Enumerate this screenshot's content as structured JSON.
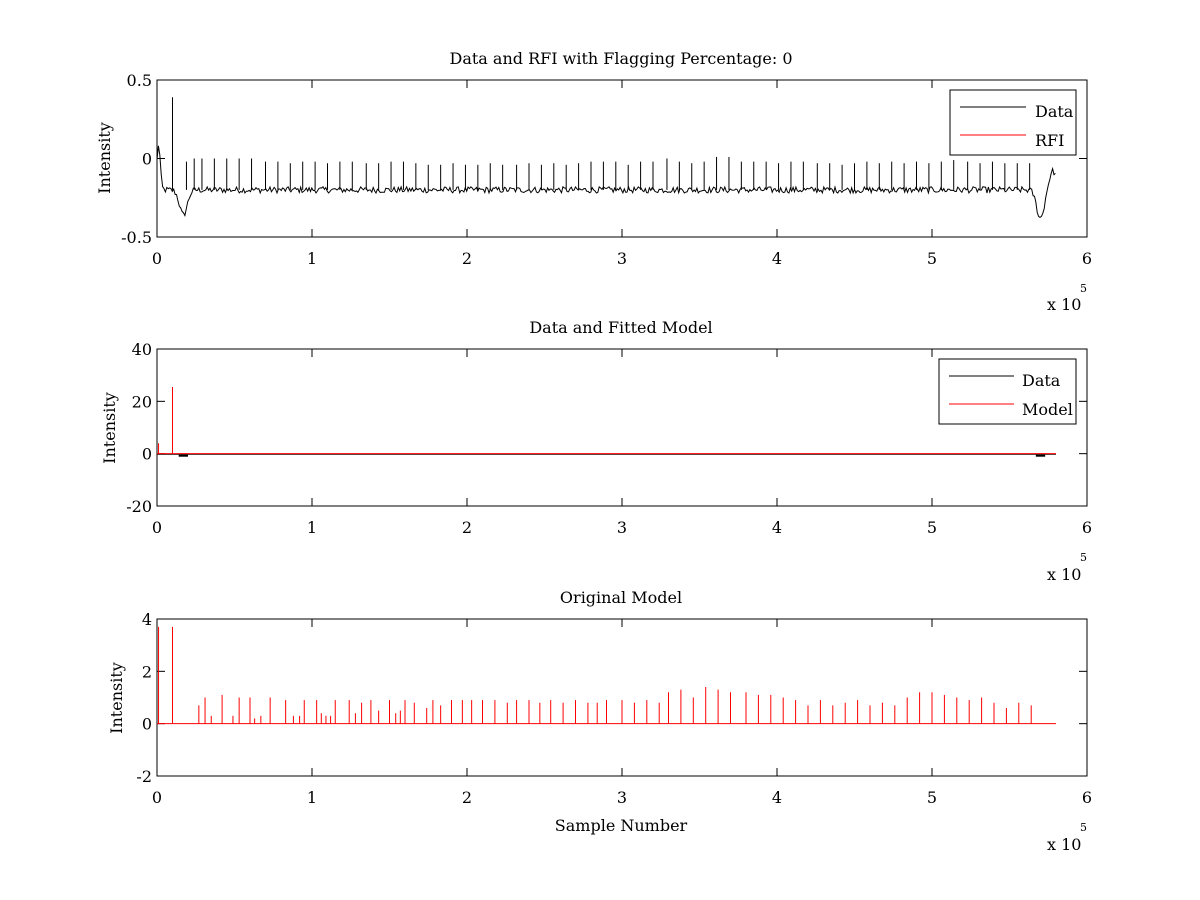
{
  "figure": {
    "background": "#ffffff",
    "axis_color": "#000000"
  },
  "chart_data": [
    {
      "type": "line",
      "title": "Data and RFI with Flagging Percentage: 0",
      "xlabel": "",
      "ylabel": "Intensity",
      "xlim": [
        0,
        600000
      ],
      "ylim": [
        -0.5,
        0.5
      ],
      "x_ticks": [
        0,
        1,
        2,
        3,
        4,
        5,
        6
      ],
      "y_ticks": [
        -0.5,
        0,
        0.5
      ],
      "y_tick_labels": [
        "-0.5",
        "0",
        "0.5"
      ],
      "x_exponent_label": "x 10",
      "x_exponent": "5",
      "grid": false,
      "legend_position": "top-right",
      "series": [
        {
          "name": "Data",
          "color": "#000000",
          "baseline": -0.2,
          "noise": 0.02,
          "spikes_x": [
            10000,
            19000,
            24000,
            29000,
            37000,
            45000,
            53000,
            61000,
            70000,
            78000,
            86000,
            94000,
            102000,
            110000,
            118000,
            126000,
            135000,
            143000,
            151000,
            159000,
            167000,
            175000,
            183000,
            191000,
            199000,
            207000,
            215000,
            223000,
            232000,
            240000,
            248000,
            256000,
            264000,
            272000,
            280000,
            288000,
            296000,
            304000,
            312000,
            320000,
            329000,
            337000,
            345000,
            353000,
            361000,
            369000,
            377000,
            385000,
            393000,
            401000,
            409000,
            417000,
            426000,
            434000,
            442000,
            450000,
            458000,
            466000,
            474000,
            482000,
            490000,
            498000,
            506000,
            514000,
            523000,
            531000,
            539000,
            547000,
            555000,
            563000
          ],
          "spikes_y": [
            0.39,
            -0.02,
            0.0,
            0.0,
            0.0,
            0.0,
            0.0,
            0.0,
            -0.02,
            -0.02,
            -0.03,
            -0.02,
            -0.02,
            -0.03,
            -0.02,
            -0.02,
            -0.03,
            -0.03,
            -0.02,
            -0.02,
            -0.03,
            -0.04,
            -0.04,
            -0.03,
            -0.04,
            -0.04,
            -0.03,
            -0.04,
            -0.04,
            -0.03,
            -0.04,
            -0.03,
            -0.04,
            -0.03,
            -0.02,
            -0.02,
            -0.02,
            -0.04,
            -0.02,
            -0.02,
            0.0,
            -0.02,
            -0.03,
            -0.02,
            0.01,
            0.01,
            -0.02,
            -0.02,
            -0.02,
            -0.03,
            -0.02,
            -0.02,
            -0.03,
            -0.03,
            -0.04,
            -0.03,
            -0.02,
            -0.03,
            -0.02,
            -0.03,
            -0.02,
            -0.03,
            -0.02,
            -0.01,
            -0.02,
            -0.03,
            -0.02,
            -0.03,
            -0.03,
            -0.03
          ],
          "dips": [
            {
              "x": 1000,
              "y": 0.09
            },
            {
              "x": 17000,
              "y": -0.36
            },
            {
              "x": 570000,
              "y": -0.38
            },
            {
              "x": 578000,
              "y": -0.08
            }
          ]
        },
        {
          "name": "RFI",
          "color": "#ff0000",
          "values": []
        }
      ]
    },
    {
      "type": "line",
      "title": "Data and Fitted Model",
      "xlabel": "",
      "ylabel": "Intensity",
      "xlim": [
        0,
        600000
      ],
      "ylim": [
        -20,
        40
      ],
      "x_ticks": [
        0,
        1,
        2,
        3,
        4,
        5,
        6
      ],
      "y_ticks": [
        -20,
        0,
        20,
        40
      ],
      "y_tick_labels": [
        "-20",
        "0",
        "20",
        "40"
      ],
      "x_exponent_label": "x 10",
      "x_exponent": "5",
      "grid": false,
      "legend_position": "top-right",
      "series": [
        {
          "name": "Data",
          "color": "#000000",
          "baseline": -0.2,
          "dips": [
            {
              "x": 17000,
              "y": -0.4
            },
            {
              "x": 570000,
              "y": -0.4
            }
          ]
        },
        {
          "name": "Model",
          "color": "#ff0000",
          "baseline": 0,
          "spikes_x": [
            1000,
            10000
          ],
          "spikes_y": [
            4,
            25.5
          ]
        }
      ]
    },
    {
      "type": "line",
      "title": "Original Model",
      "xlabel": "Sample Number",
      "ylabel": "Intensity",
      "xlim": [
        0,
        600000
      ],
      "ylim": [
        -2,
        4
      ],
      "x_ticks": [
        0,
        1,
        2,
        3,
        4,
        5,
        6
      ],
      "y_ticks": [
        -2,
        0,
        2,
        4
      ],
      "y_tick_labels": [
        "-2",
        "0",
        "2",
        "4"
      ],
      "x_exponent_label": "x 10",
      "x_exponent": "5",
      "grid": false,
      "series": [
        {
          "name": "Model",
          "color": "#ff0000",
          "baseline": 0,
          "spikes_x": [
            1000,
            10000,
            27000,
            31000,
            35000,
            42000,
            49000,
            53000,
            60000,
            63000,
            67000,
            73000,
            83000,
            88000,
            92000,
            95000,
            103000,
            106000,
            109000,
            112000,
            115000,
            124000,
            128000,
            132000,
            138000,
            143000,
            150000,
            154000,
            157000,
            160000,
            166000,
            174000,
            178000,
            183000,
            190000,
            197000,
            203000,
            210000,
            218000,
            226000,
            232000,
            240000,
            247000,
            254000,
            262000,
            270000,
            278000,
            284000,
            290000,
            300000,
            308000,
            316000,
            324000,
            330000,
            338000,
            346000,
            354000,
            362000,
            370000,
            380000,
            388000,
            396000,
            404000,
            412000,
            420000,
            428000,
            436000,
            444000,
            452000,
            460000,
            468000,
            476000,
            484000,
            492000,
            500000,
            508000,
            516000,
            524000,
            532000,
            540000,
            548000,
            556000,
            564000
          ],
          "spikes_y": [
            3.7,
            3.7,
            0.7,
            1.0,
            0.3,
            1.1,
            0.3,
            1.0,
            1.0,
            0.2,
            0.3,
            1.0,
            0.9,
            0.3,
            0.3,
            0.9,
            0.9,
            0.4,
            0.3,
            0.3,
            0.9,
            0.9,
            0.4,
            0.8,
            0.9,
            0.5,
            0.9,
            0.4,
            0.5,
            0.9,
            0.8,
            0.6,
            0.9,
            0.7,
            0.9,
            0.9,
            0.9,
            0.9,
            0.9,
            0.8,
            0.9,
            0.9,
            0.8,
            0.9,
            0.8,
            0.9,
            0.8,
            0.8,
            0.9,
            0.9,
            0.8,
            0.9,
            0.8,
            1.2,
            1.3,
            1.0,
            1.4,
            1.3,
            1.2,
            1.2,
            1.1,
            1.1,
            1.0,
            0.9,
            0.7,
            0.9,
            0.7,
            0.8,
            0.9,
            0.7,
            0.8,
            0.7,
            1.0,
            1.2,
            1.2,
            1.1,
            1.0,
            0.9,
            1.0,
            0.8,
            0.6,
            0.8,
            0.7
          ]
        }
      ]
    }
  ]
}
